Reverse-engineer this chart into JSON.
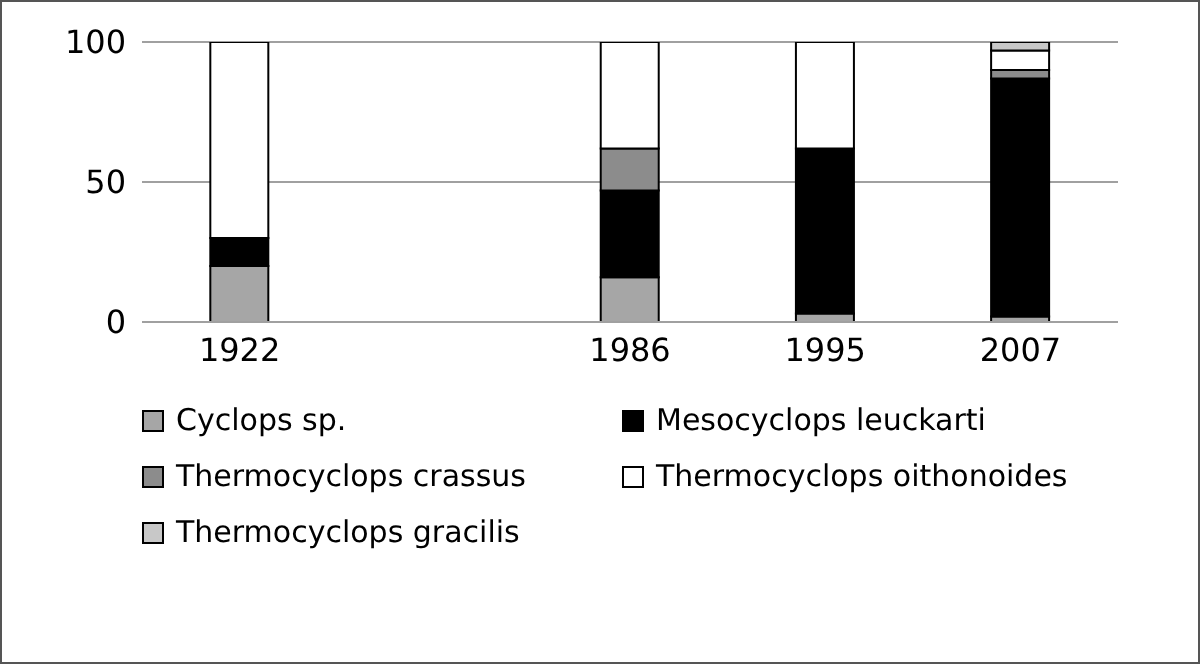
{
  "chart_data": {
    "type": "bar",
    "stacked": true,
    "categories": [
      "1922",
      null,
      "1986",
      "1995",
      "2007"
    ],
    "series": [
      {
        "name": "Cyclops sp.",
        "color": "#a6a6a6",
        "values": [
          20,
          0,
          16,
          3,
          2
        ]
      },
      {
        "name": "Mesocyclops leuckarti",
        "color": "#000000",
        "values": [
          10,
          0,
          31,
          59,
          85
        ]
      },
      {
        "name": "Thermocyclops crassus",
        "color": "#8c8c8c",
        "values": [
          0,
          0,
          15,
          0,
          3
        ]
      },
      {
        "name": "Thermocyclops oithonoides",
        "color": "#ffffff",
        "values": [
          70,
          0,
          38,
          38,
          7
        ]
      },
      {
        "name": "Thermocyclops gracilis",
        "color": "#c8c8c8",
        "values": [
          0,
          0,
          0,
          0,
          3
        ]
      }
    ],
    "ylim": [
      0,
      100
    ],
    "yticks": [
      0,
      50,
      100
    ],
    "grid": "y",
    "legend": "bottom"
  }
}
